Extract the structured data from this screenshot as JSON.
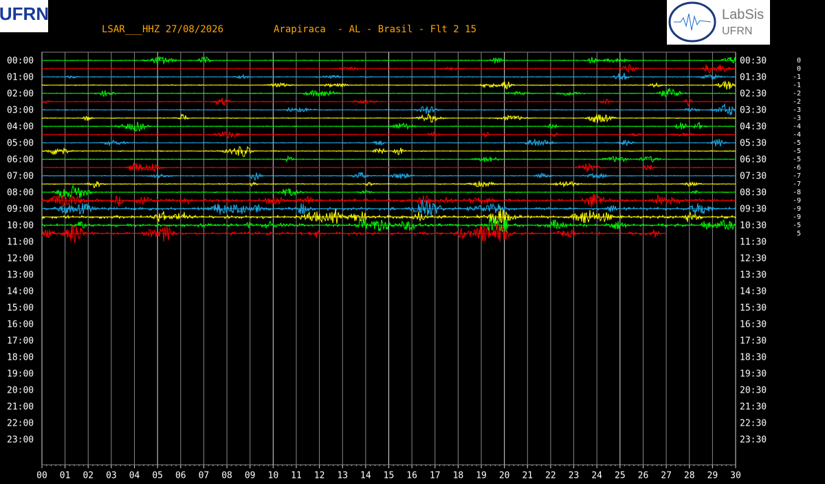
{
  "header": {
    "station": "LSAR___HHZ 27/08/2026",
    "location": "Arapiraca  - AL - Brasil - Flt 2 15"
  },
  "logos": {
    "left": "UFRN",
    "right_title": "LabSis",
    "right_sub": "UFRN"
  },
  "left_labels": [
    "00:00",
    "01:00",
    "02:00",
    "03:00",
    "04:00",
    "05:00",
    "06:00",
    "07:00",
    "08:00",
    "09:00",
    "10:00",
    "11:00",
    "12:00",
    "13:00",
    "14:00",
    "15:00",
    "16:00",
    "17:00",
    "18:00",
    "19:00",
    "20:00",
    "21:00",
    "22:00",
    "23:00"
  ],
  "right_labels": [
    "00:30",
    "01:30",
    "02:30",
    "03:30",
    "04:30",
    "05:30",
    "06:30",
    "07:30",
    "08:30",
    "09:30",
    "10:30",
    "11:30",
    "12:30",
    "13:30",
    "14:30",
    "15:30",
    "16:30",
    "17:30",
    "18:30",
    "19:30",
    "20:30",
    "21:30",
    "22:30",
    "23:30"
  ],
  "offsets": [
    0,
    0,
    -1,
    -1,
    -2,
    -2,
    -3,
    -3,
    -4,
    -4,
    -5,
    -5,
    -5,
    -6,
    -7,
    -7,
    -8,
    -9,
    -9,
    -9,
    -5,
    5
  ],
  "x_labels": [
    "00",
    "01",
    "02",
    "03",
    "04",
    "05",
    "06",
    "07",
    "08",
    "09",
    "10",
    "11",
    "12",
    "13",
    "14",
    "15",
    "16",
    "17",
    "18",
    "19",
    "20",
    "21",
    "22",
    "23",
    "24",
    "25",
    "26",
    "27",
    "28",
    "29",
    "30"
  ],
  "trace_colors": [
    "#00ff00",
    "#ff0000",
    "#20b0f0",
    "#ffff00"
  ]
}
